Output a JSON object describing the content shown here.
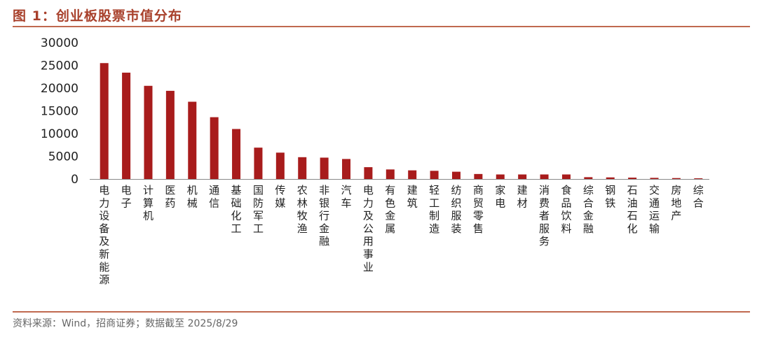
{
  "header": {
    "title": "图 1：创业板股票市值分布"
  },
  "footer": {
    "source": "资料来源：Wind，招商证券；数据截至 2025/8/29"
  },
  "colors": {
    "bar": "#a81c1c",
    "accent": "#c0694f",
    "title": "#a8402b"
  },
  "chart_data": {
    "type": "bar",
    "title": "创业板股票市值分布",
    "xlabel": "",
    "ylabel": "",
    "ylim": [
      0,
      30000
    ],
    "yticks": [
      0,
      5000,
      10000,
      15000,
      20000,
      25000,
      30000
    ],
    "grid": false,
    "legend": "none",
    "categories": [
      "电力设备及新能源",
      "电子",
      "计算机",
      "医药",
      "机械",
      "通信",
      "基础化工",
      "国防军工",
      "传媒",
      "农林牧渔",
      "非银行金融",
      "汽车",
      "电力及公用事业",
      "有色金属",
      "建筑",
      "轻工制造",
      "纺织服装",
      "商贸零售",
      "家电",
      "建材",
      "消费者服务",
      "食品饮料",
      "综合金融",
      "钢铁",
      "石油石化",
      "交通运输",
      "房地产",
      "综合"
    ],
    "values": [
      25500,
      23400,
      20500,
      19400,
      17000,
      13600,
      11000,
      6900,
      5800,
      4800,
      4700,
      4400,
      2600,
      2100,
      1900,
      1800,
      1600,
      1100,
      1000,
      1000,
      1000,
      1000,
      400,
      350,
      300,
      250,
      200,
      150
    ]
  }
}
